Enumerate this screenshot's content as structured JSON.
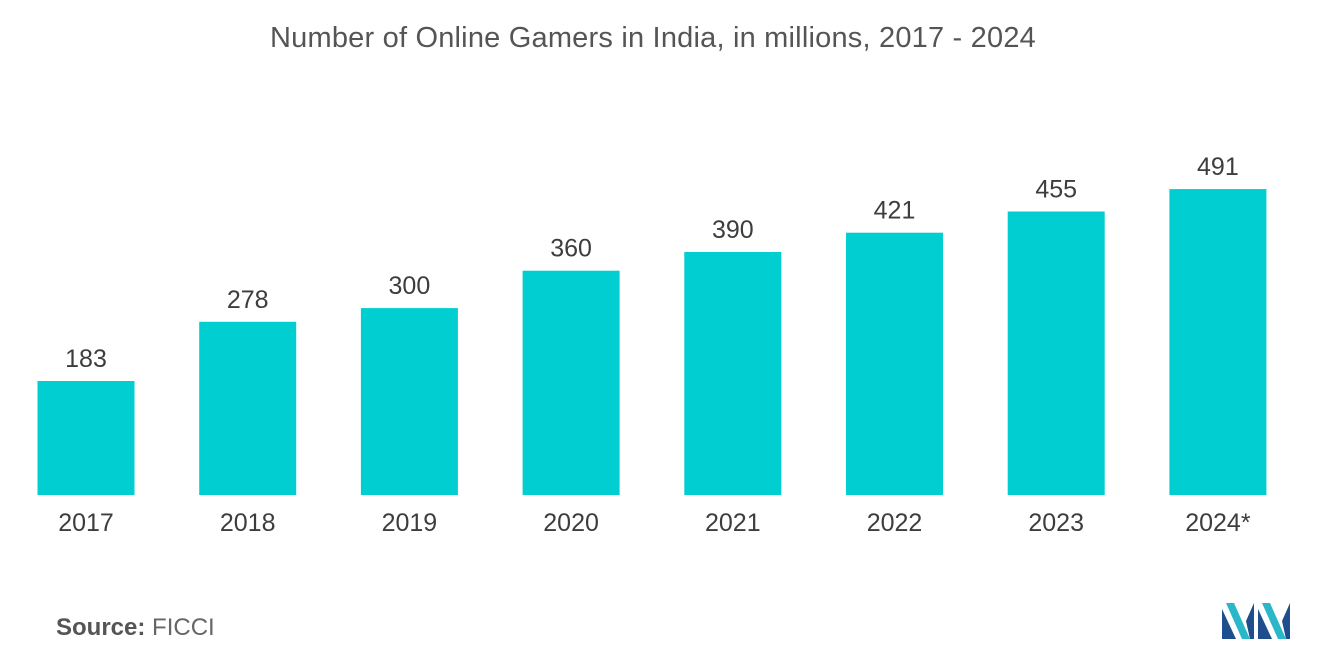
{
  "chart_data": {
    "type": "bar",
    "title": "Number of Online Gamers in India, in millions, 2017 - 2024",
    "categories": [
      "2017",
      "2018",
      "2019",
      "2020",
      "2021",
      "2022",
      "2023",
      "2024*"
    ],
    "values": [
      183,
      278,
      300,
      360,
      390,
      421,
      455,
      491
    ],
    "value_labels": [
      "183",
      "278",
      "300",
      "360",
      "390",
      "421",
      "455",
      "491"
    ],
    "xlabel": "",
    "ylabel": "",
    "ylim": [
      0,
      500
    ],
    "grid": false,
    "legend": "none",
    "bar_color": "#00ced1"
  },
  "source": {
    "label": "Source:",
    "value": "FICCI"
  },
  "logo": {
    "icon": "mordor-intelligence-logo-icon",
    "colors": [
      "#1e4f8c",
      "#2ab7c9"
    ]
  }
}
